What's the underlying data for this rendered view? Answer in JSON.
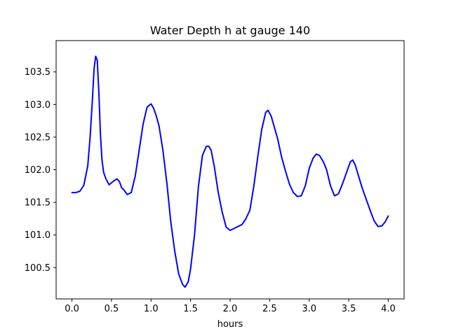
{
  "chart_data": {
    "type": "line",
    "title": "Water Depth h at gauge 140",
    "xlabel": "hours",
    "ylabel": "",
    "xlim": [
      -0.2,
      4.2
    ],
    "ylim": [
      100.02,
      103.98
    ],
    "xticks": [
      0.0,
      0.5,
      1.0,
      1.5,
      2.0,
      2.5,
      3.0,
      3.5,
      4.0
    ],
    "xtick_labels": [
      "0.0",
      "0.5",
      "1.0",
      "1.5",
      "2.0",
      "2.5",
      "3.0",
      "3.5",
      "4.0"
    ],
    "yticks": [
      100.5,
      101.0,
      101.5,
      102.0,
      102.5,
      103.0,
      103.5
    ],
    "ytick_labels": [
      "100.5",
      "101.0",
      "101.5",
      "102.0",
      "102.5",
      "103.0",
      "103.5"
    ],
    "grid": false,
    "series": [
      {
        "color": "#0000ff",
        "x": [
          0.0,
          0.05,
          0.1,
          0.15,
          0.2,
          0.23,
          0.26,
          0.28,
          0.3,
          0.32,
          0.34,
          0.36,
          0.38,
          0.4,
          0.43,
          0.47,
          0.5,
          0.53,
          0.57,
          0.6,
          0.63,
          0.65,
          0.7,
          0.75,
          0.8,
          0.85,
          0.9,
          0.95,
          1.0,
          1.03,
          1.06,
          1.1,
          1.15,
          1.2,
          1.25,
          1.3,
          1.35,
          1.4,
          1.43,
          1.47,
          1.5,
          1.55,
          1.6,
          1.65,
          1.7,
          1.73,
          1.76,
          1.8,
          1.85,
          1.9,
          1.95,
          2.0,
          2.05,
          2.1,
          2.15,
          2.2,
          2.25,
          2.3,
          2.35,
          2.4,
          2.45,
          2.48,
          2.52,
          2.56,
          2.6,
          2.65,
          2.7,
          2.75,
          2.8,
          2.85,
          2.9,
          2.95,
          3.0,
          3.05,
          3.09,
          3.13,
          3.18,
          3.22,
          3.27,
          3.32,
          3.37,
          3.42,
          3.47,
          3.52,
          3.55,
          3.58,
          3.62,
          3.67,
          3.72,
          3.77,
          3.82,
          3.87,
          3.92,
          3.96,
          4.0
        ],
        "values": [
          101.65,
          101.65,
          101.67,
          101.76,
          102.06,
          102.5,
          103.1,
          103.55,
          103.74,
          103.68,
          103.2,
          102.55,
          102.15,
          101.96,
          101.86,
          101.77,
          101.8,
          101.83,
          101.86,
          101.82,
          101.72,
          101.7,
          101.62,
          101.65,
          101.9,
          102.3,
          102.7,
          102.96,
          103.01,
          102.95,
          102.85,
          102.68,
          102.3,
          101.8,
          101.2,
          100.75,
          100.4,
          100.24,
          100.2,
          100.28,
          100.48,
          101.0,
          101.75,
          102.22,
          102.36,
          102.36,
          102.3,
          102.05,
          101.65,
          101.35,
          101.12,
          101.07,
          101.1,
          101.13,
          101.16,
          101.25,
          101.38,
          101.75,
          102.2,
          102.62,
          102.88,
          102.91,
          102.82,
          102.65,
          102.48,
          102.2,
          101.98,
          101.78,
          101.65,
          101.59,
          101.6,
          101.75,
          102.02,
          102.18,
          102.24,
          102.22,
          102.12,
          102.0,
          101.75,
          101.6,
          101.63,
          101.78,
          101.95,
          102.12,
          102.15,
          102.08,
          101.92,
          101.72,
          101.55,
          101.38,
          101.22,
          101.13,
          101.14,
          101.2,
          101.29
        ]
      }
    ]
  }
}
